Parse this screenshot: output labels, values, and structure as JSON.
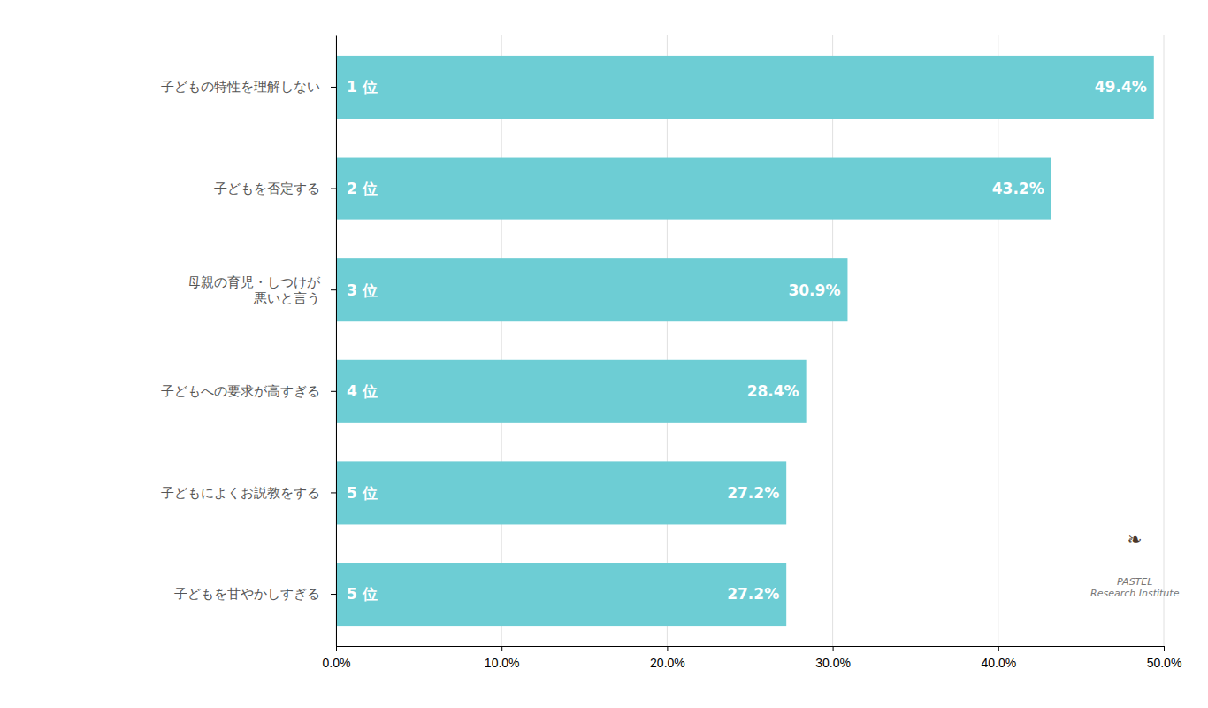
{
  "chart_data": {
    "type": "bar",
    "orientation": "horizontal",
    "categories": [
      "子どもの特性を理解しない",
      "子どもを否定する",
      "母親の育児・しつけが\n悪いと言う",
      "子どもへの要求が高すぎる",
      "子どもによくお説教をする",
      "子どもを甘やかしすぎる"
    ],
    "values": [
      49.4,
      43.2,
      30.9,
      28.4,
      27.2,
      27.2
    ],
    "value_labels": [
      "49.4%",
      "43.2%",
      "30.9%",
      "28.4%",
      "27.2%",
      "27.2%"
    ],
    "rank_labels": [
      "1 位",
      "2 位",
      "3 位",
      "4 位",
      "5 位",
      "5 位"
    ],
    "data_labels": true,
    "color": "#6DCDD4",
    "xlim": [
      0,
      50.0
    ],
    "xticks": [
      {
        "value": 0.0,
        "label": "0.0%"
      },
      {
        "value": 10.0,
        "label": "10.0%"
      },
      {
        "value": 20.0,
        "label": "20.0%"
      },
      {
        "value": 30.0,
        "label": "30.0%"
      },
      {
        "value": 40.0,
        "label": "40.0%"
      },
      {
        "value": 50.0,
        "label": "50.0%"
      }
    ],
    "grid": true,
    "annotations": [
      "❧",
      "PASTEL\nResearch Institute"
    ]
  }
}
